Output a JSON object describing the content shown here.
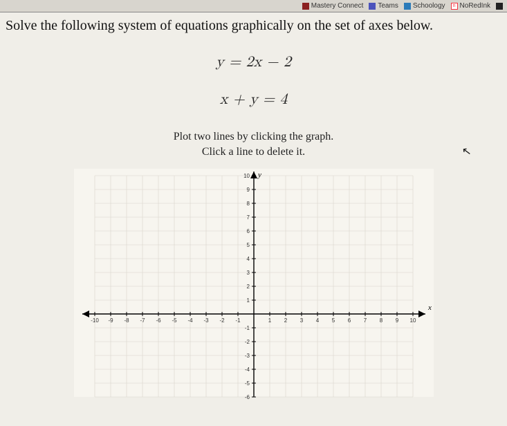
{
  "browser": {
    "tabs": [
      {
        "label": "Mastery Connect",
        "icon_color": "#8b2020"
      },
      {
        "label": "Teams",
        "icon_color": "#4b53bc"
      },
      {
        "label": "Schoology",
        "icon_color": "#2b7bb9"
      },
      {
        "label": "NoRedInk",
        "icon_color": "#f5333f"
      }
    ]
  },
  "title": "Solve the following system of equations graphically on the set of axes below.",
  "equation1_html": "y = 2x − 2",
  "equation2_html": "x + y = 4",
  "instruction_line1": "Plot two lines by clicking the graph.",
  "instruction_line2": "Click a line to delete it.",
  "graph": {
    "xmin": -10,
    "xmax": 10,
    "ymin": -6,
    "ymax": 10,
    "x_ticks": [
      -10,
      -9,
      -8,
      -7,
      -6,
      -5,
      -4,
      -3,
      -2,
      -1,
      1,
      2,
      3,
      4,
      5,
      6,
      7,
      8,
      9,
      10
    ],
    "y_ticks_pos": [
      1,
      2,
      3,
      4,
      5,
      6,
      7,
      8,
      9,
      10
    ],
    "y_ticks_neg": [
      -1,
      -2,
      -3,
      -4,
      -5,
      -6
    ],
    "x_axis_label": "x",
    "y_axis_label": "y",
    "grid_color": "#d8d4cc",
    "axis_color": "#000000",
    "tick_label_color": "#333333",
    "tick_fontsize": 8,
    "axis_label_fontsize": 11,
    "background_color": "#f7f5ef"
  }
}
